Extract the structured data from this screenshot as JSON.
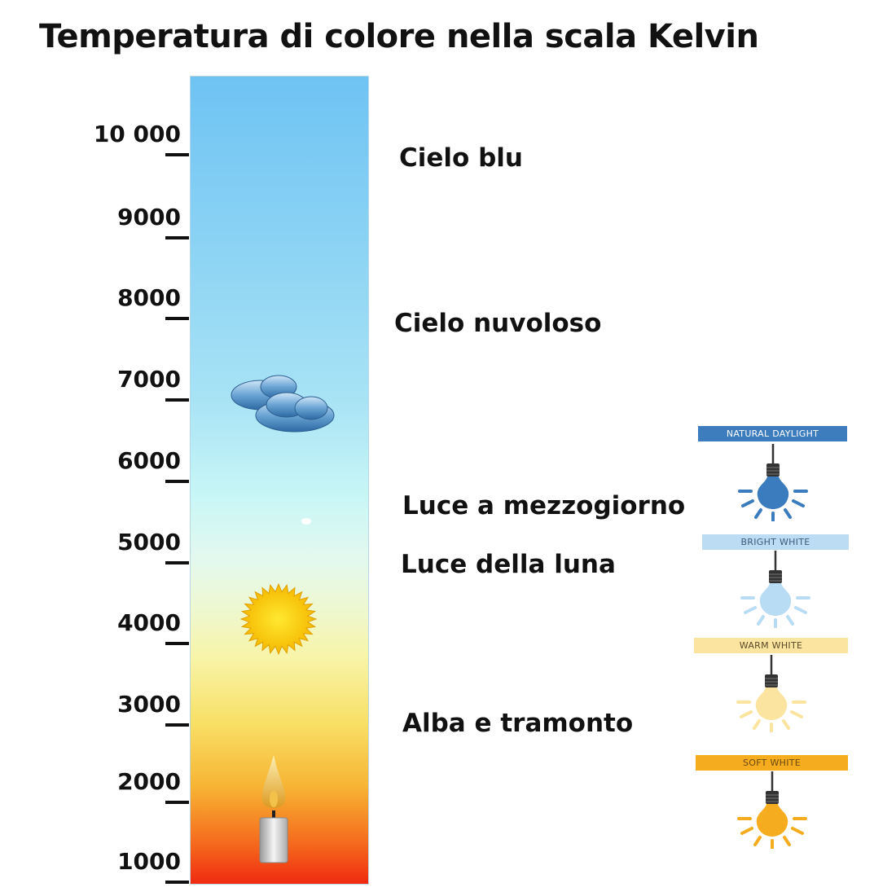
{
  "title": "Temperatura di colore nella scala Kelvin",
  "scale": {
    "unit": "K",
    "ticks": [
      "10 000",
      "9000",
      "8000",
      "7000",
      "6000",
      "5000",
      "4000",
      "3000",
      "2000",
      "1000"
    ]
  },
  "descriptions": [
    "Cielo blu",
    "Cielo nuvoloso",
    "Luce a mezzogiorno",
    "Luce della luna",
    "Alba e tramonto"
  ],
  "icons": [
    "cloud-icon",
    "sun-icon",
    "candle-icon"
  ],
  "bulbs": [
    {
      "label": "NATURAL DAYLIGHT",
      "bg": "#3d7dbd",
      "fg": "#ffffff",
      "bulb": "#3a7cbd"
    },
    {
      "label": "BRIGHT WHITE",
      "bg": "#bcdcf3",
      "fg": "#3a5a7a",
      "bulb": "#b8dcf3"
    },
    {
      "label": "WARM WHITE",
      "bg": "#fbe3a0",
      "fg": "#5a4a2a",
      "bulb": "#fbe3a0"
    },
    {
      "label": "SOFT WHITE",
      "bg": "#f5ac1f",
      "fg": "#6a4a10",
      "bulb": "#f5ac1f"
    }
  ]
}
